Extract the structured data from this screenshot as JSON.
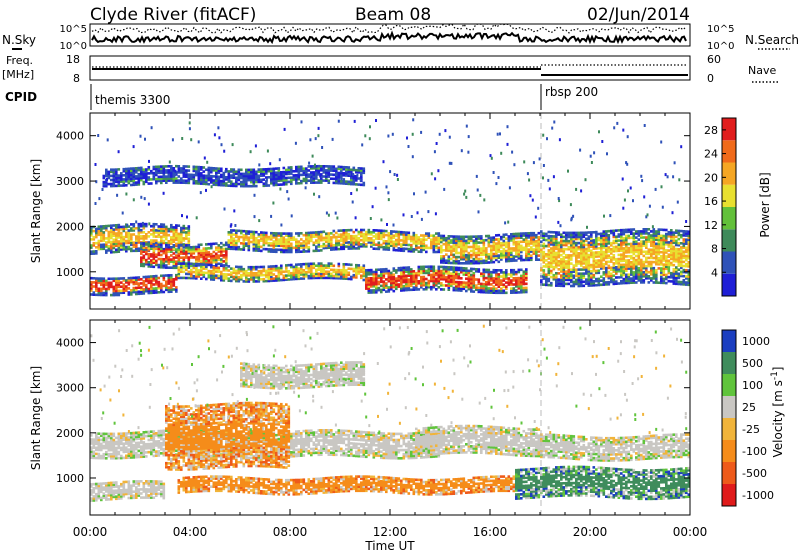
{
  "header": {
    "station": "Clyde River (fitACF)",
    "beam": "Beam 08",
    "date": "02/Jun/2014"
  },
  "summary_panels": {
    "nsky_label": "N.Sky",
    "nsearch_label": "N.Search",
    "nsky_ticks": [
      "10^5",
      "10^0"
    ],
    "nsearch_ticks": [
      "10^5",
      "10^0"
    ],
    "freq_label": "Freq.",
    "freq_unit": "[MHz]",
    "freq_ticks": [
      "18",
      "8"
    ],
    "nave_label": "Nave",
    "nave_ticks": [
      "60",
      "0"
    ],
    "cpid_label": "CPID",
    "cpid_modes": [
      {
        "name": "themis 3300",
        "start_hour": 0
      },
      {
        "name": "rbsp 200",
        "start_hour": 18
      }
    ]
  },
  "colors": {
    "power_scale": [
      "#1f1fd6",
      "#2f52b8",
      "#3e8a5a",
      "#62c03a",
      "#e8e030",
      "#f5a623",
      "#f06a1a",
      "#e11d1d"
    ],
    "velocity_scale": [
      "#e01b1b",
      "#ee5a1a",
      "#f58c1a",
      "#f1b43a",
      "#c9c7c3",
      "#60c43c",
      "#3f8c5c",
      "#1b3ec0"
    ]
  },
  "chart_data": [
    {
      "type": "heatmap",
      "title": "Power",
      "xlabel": "Time UT",
      "ylabel": "Slant Range [km]",
      "x_ticks": [
        "00:00",
        "04:00",
        "08:00",
        "12:00",
        "16:00",
        "20:00",
        "00:00"
      ],
      "xlim_hours": [
        0,
        24
      ],
      "y_ticks": [
        1000,
        2000,
        3000,
        4000
      ],
      "ylim_km": [
        180,
        4500
      ],
      "colorbar_label": "Power [dB]",
      "colorbar_ticks": [
        4,
        8,
        12,
        16,
        20,
        24,
        28
      ],
      "colorbar_range": [
        0,
        30
      ],
      "bands": [
        {
          "start_h": 0.0,
          "end_h": 3.5,
          "range_km": [
            500,
            900
          ],
          "level": "high"
        },
        {
          "start_h": 0.0,
          "end_h": 4.0,
          "range_km": [
            1400,
            2000
          ],
          "level": "mid"
        },
        {
          "start_h": 2.0,
          "end_h": 5.5,
          "range_km": [
            1100,
            1600
          ],
          "level": "high"
        },
        {
          "start_h": 5.5,
          "end_h": 14.0,
          "range_km": [
            1450,
            1900
          ],
          "level": "mid"
        },
        {
          "start_h": 3.5,
          "end_h": 11.0,
          "range_km": [
            800,
            1150
          ],
          "level": "mid"
        },
        {
          "start_h": 11.0,
          "end_h": 17.5,
          "range_km": [
            550,
            1050
          ],
          "level": "high"
        },
        {
          "start_h": 14.0,
          "end_h": 18.0,
          "range_km": [
            1200,
            1800
          ],
          "level": "mid"
        },
        {
          "start_h": 18.0,
          "end_h": 24.0,
          "range_km": [
            700,
            1900
          ],
          "level": "mid"
        },
        {
          "start_h": 0.5,
          "end_h": 11.0,
          "range_km": [
            2900,
            3300
          ],
          "level": "low"
        }
      ]
    },
    {
      "type": "heatmap",
      "title": "Velocity",
      "xlabel": "Time UT",
      "ylabel": "Slant Range [km]",
      "x_ticks": [
        "00:00",
        "04:00",
        "08:00",
        "12:00",
        "16:00",
        "20:00",
        "00:00"
      ],
      "xlim_hours": [
        0,
        24
      ],
      "y_ticks": [
        1000,
        2000,
        3000,
        4000
      ],
      "ylim_km": [
        180,
        4500
      ],
      "colorbar_label": "Velocity [m s^-1]",
      "colorbar_ticks": [
        1000,
        500,
        100,
        25,
        -25,
        -100,
        -500,
        -1000
      ],
      "bands": [
        {
          "start_h": 0.0,
          "end_h": 14.0,
          "range_km": [
            1450,
            2000
          ],
          "level": "gray"
        },
        {
          "start_h": 0.0,
          "end_h": 3.0,
          "range_km": [
            500,
            900
          ],
          "level": "gray"
        },
        {
          "start_h": 3.0,
          "end_h": 8.0,
          "range_km": [
            1200,
            2600
          ],
          "level": "orange"
        },
        {
          "start_h": 3.5,
          "end_h": 17.0,
          "range_km": [
            650,
            1000
          ],
          "level": "orange"
        },
        {
          "start_h": 13.0,
          "end_h": 18.0,
          "range_km": [
            1500,
            2100
          ],
          "level": "gray"
        },
        {
          "start_h": 17.0,
          "end_h": 24.0,
          "range_km": [
            550,
            1200
          ],
          "level": "green"
        },
        {
          "start_h": 18.0,
          "end_h": 24.0,
          "range_km": [
            1400,
            1900
          ],
          "level": "gray"
        },
        {
          "start_h": 6.0,
          "end_h": 11.0,
          "range_km": [
            3000,
            3500
          ],
          "level": "gray"
        }
      ]
    }
  ]
}
